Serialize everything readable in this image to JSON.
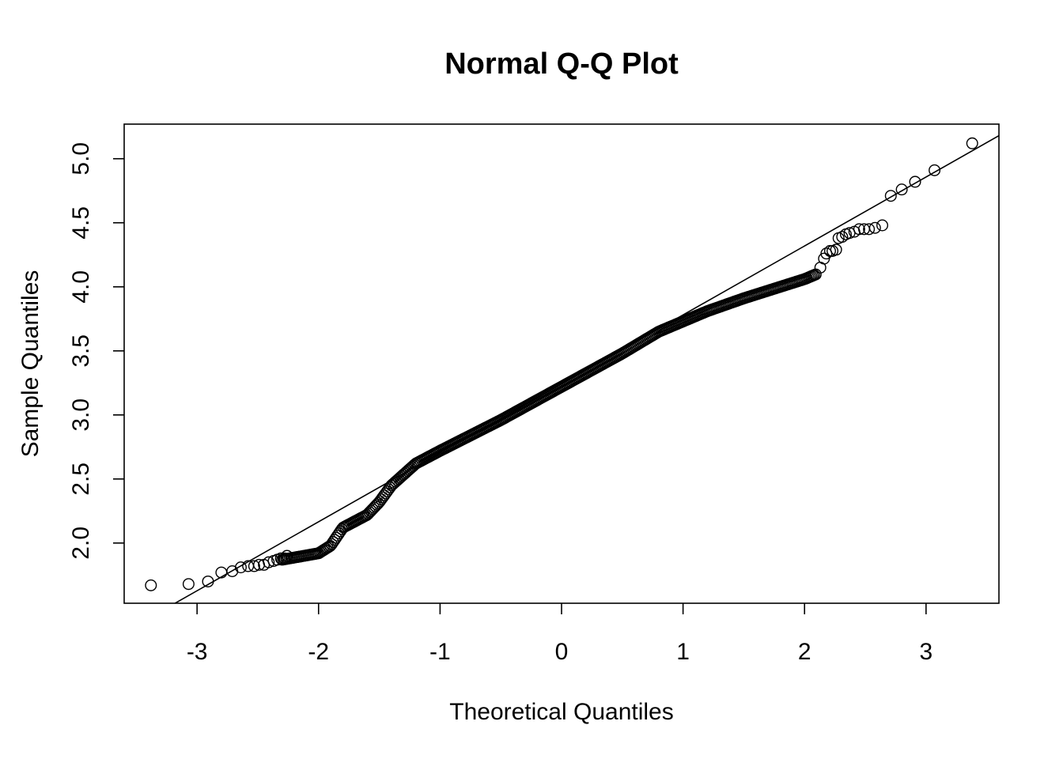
{
  "chart_data": {
    "type": "scatter",
    "title": "Normal Q-Q Plot",
    "xlabel": "Theoretical Quantiles",
    "ylabel": "Sample Quantiles",
    "xlim": [
      -3.6,
      3.6
    ],
    "ylim": [
      1.53,
      5.27
    ],
    "x_ticks": [
      -3,
      -2,
      -1,
      0,
      1,
      2,
      3
    ],
    "x_tick_labels": [
      "-3",
      "-2",
      "-1",
      "0",
      "1",
      "2",
      "3"
    ],
    "y_ticks": [
      2.0,
      2.5,
      3.0,
      3.5,
      4.0,
      4.5,
      5.0
    ],
    "y_tick_labels": [
      "2.0",
      "2.5",
      "3.0",
      "3.5",
      "4.0",
      "4.5",
      "5.0"
    ],
    "grid": false,
    "legend": "none",
    "reference_line": {
      "from": [
        -3.2,
        1.52
      ],
      "to": [
        3.6,
        5.18
      ]
    },
    "marker": "open-circle",
    "curve_knots": {
      "x": [
        -2.3,
        -2.0,
        -1.9,
        -1.8,
        -1.6,
        -1.5,
        -1.4,
        -1.2,
        -1.0,
        -0.5,
        0.0,
        0.5,
        0.8,
        1.0,
        1.2,
        1.5,
        1.8,
        2.0,
        2.1
      ],
      "y": [
        1.87,
        1.92,
        1.98,
        2.12,
        2.22,
        2.32,
        2.45,
        2.62,
        2.72,
        2.96,
        3.22,
        3.48,
        3.65,
        3.73,
        3.81,
        3.91,
        4.0,
        4.06,
        4.1
      ]
    },
    "tail_points": {
      "x": [
        -3.38,
        -3.07,
        -2.91,
        -2.8,
        -2.71,
        -2.64,
        -2.58,
        -2.53,
        -2.49,
        -2.45,
        -2.41,
        -2.37,
        -2.34,
        -2.31,
        -2.28,
        -2.26,
        2.13,
        2.16,
        2.18,
        2.21,
        2.23,
        2.26,
        2.28,
        2.31,
        2.34,
        2.37,
        2.41,
        2.45,
        2.49,
        2.53,
        2.58,
        2.64,
        2.71,
        2.8,
        2.91,
        3.07,
        3.38
      ],
      "y": [
        1.67,
        1.68,
        1.7,
        1.77,
        1.78,
        1.81,
        1.82,
        1.82,
        1.83,
        1.83,
        1.85,
        1.86,
        1.87,
        1.88,
        1.88,
        1.9,
        4.15,
        4.22,
        4.26,
        4.28,
        4.28,
        4.29,
        4.38,
        4.39,
        4.41,
        4.42,
        4.43,
        4.45,
        4.45,
        4.45,
        4.46,
        4.48,
        4.71,
        4.76,
        4.82,
        4.91,
        5.12
      ]
    }
  }
}
